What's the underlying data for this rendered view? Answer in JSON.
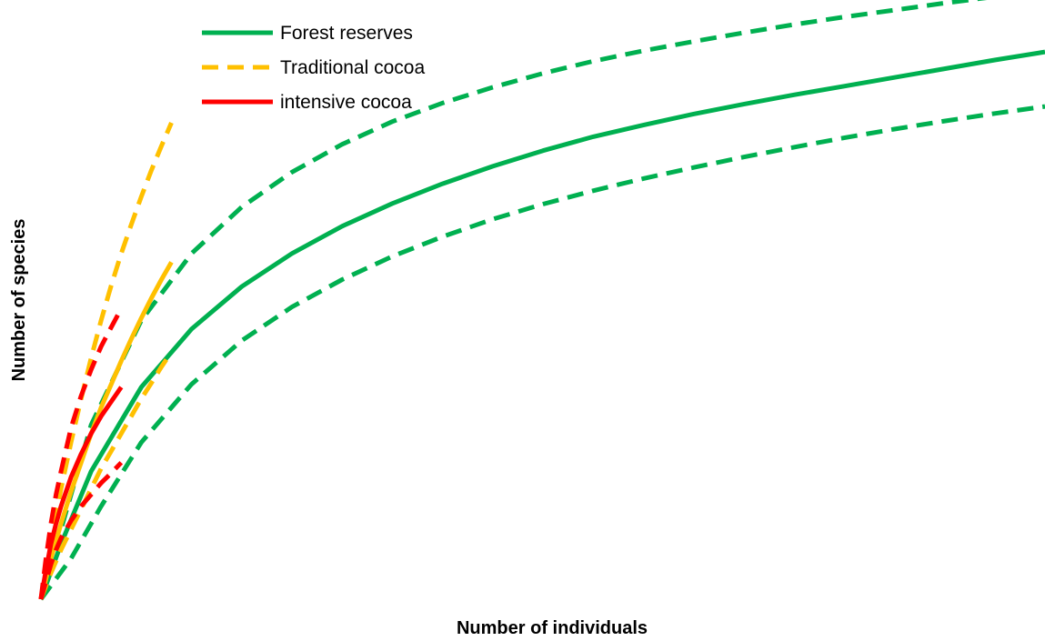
{
  "chart_data": {
    "type": "line",
    "title": "",
    "xlabel": "Number of individuals",
    "ylabel": "Number of species",
    "xlim": [
      0,
      1000
    ],
    "ylim": [
      0,
      100
    ],
    "grid": false,
    "axes_visible": false,
    "legend_position": "top-left",
    "legend": [
      {
        "label": "Forest reserves",
        "color": "#00b050",
        "style": "solid"
      },
      {
        "label": "Traditional cocoa",
        "color": "#ffc000",
        "style": "dashed"
      },
      {
        "label": "intensive cocoa",
        "color": "#ff0000",
        "style": "solid"
      }
    ],
    "series": [
      {
        "name": "Forest reserves",
        "role": "estimate",
        "color": "#00b050",
        "dash": false,
        "x": [
          0,
          20,
          50,
          100,
          150,
          200,
          250,
          300,
          350,
          400,
          450,
          500,
          550,
          600,
          650,
          700,
          750,
          800,
          850,
          900,
          950,
          1000
        ],
        "y": [
          0,
          9.5,
          22,
          36.5,
          46.5,
          53.8,
          59.5,
          64.2,
          68.1,
          71.5,
          74.5,
          77.2,
          79.6,
          81.6,
          83.5,
          85.2,
          86.8,
          88.3,
          89.8,
          91.3,
          92.8,
          94.2
        ]
      },
      {
        "name": "Forest reserves",
        "role": "upper_ci",
        "color": "#00b050",
        "dash": true,
        "x": [
          0,
          50,
          100,
          150,
          200,
          250,
          300,
          350,
          400,
          450,
          500,
          550,
          600,
          650,
          700,
          750,
          800,
          850,
          900,
          950,
          1000
        ],
        "y": [
          0,
          30,
          48,
          59.5,
          67.5,
          73.5,
          78.3,
          82.2,
          85.4,
          88.1,
          90.5,
          92.6,
          94.4,
          96,
          97.5,
          98.9,
          100.2,
          101.4,
          102.6,
          103.7,
          104.8
        ]
      },
      {
        "name": "Forest reserves",
        "role": "lower_ci",
        "color": "#00b050",
        "dash": true,
        "x": [
          0,
          30,
          60,
          100,
          150,
          200,
          250,
          300,
          350,
          400,
          450,
          500,
          550,
          600,
          650,
          700,
          750,
          800,
          850,
          900,
          950,
          1000
        ],
        "y": [
          0,
          7,
          16,
          27,
          37,
          44.5,
          50.3,
          55,
          59,
          62.4,
          65.4,
          68,
          70.3,
          72.4,
          74.3,
          76.1,
          77.8,
          79.4,
          80.9,
          82.3,
          83.6,
          84.8
        ]
      },
      {
        "name": "Traditional cocoa",
        "role": "estimate",
        "color": "#ffc000",
        "dash": false,
        "x": [
          0,
          10,
          20,
          30,
          40,
          50,
          60,
          70,
          80,
          90,
          100,
          110,
          120,
          130
        ],
        "y": [
          0,
          7,
          13,
          18.5,
          23.5,
          28.5,
          33,
          37,
          41,
          44.8,
          48.4,
          51.8,
          55,
          58
        ]
      },
      {
        "name": "Traditional cocoa",
        "role": "upper_ci",
        "color": "#ffc000",
        "dash": true,
        "x": [
          0,
          10,
          20,
          30,
          40,
          50,
          60,
          70,
          80,
          90,
          100,
          110,
          120,
          130
        ],
        "y": [
          0,
          10,
          19,
          27,
          34.5,
          41.5,
          48,
          54,
          59.5,
          64.5,
          69.3,
          73.8,
          78,
          82
        ]
      },
      {
        "name": "Traditional cocoa",
        "role": "lower_ci",
        "color": "#ffc000",
        "dash": true,
        "x": [
          0,
          10,
          20,
          30,
          40,
          50,
          60,
          70,
          80,
          90,
          100,
          110,
          120,
          130
        ],
        "y": [
          0,
          4.5,
          8.5,
          12,
          15.5,
          19,
          22.5,
          25.5,
          28.5,
          31.5,
          34.5,
          37.2,
          40,
          42.5
        ]
      },
      {
        "name": "intensive cocoa",
        "role": "estimate",
        "color": "#ff0000",
        "dash": false,
        "x": [
          0,
          5,
          10,
          15,
          20,
          30,
          40,
          50,
          60,
          70,
          80
        ],
        "y": [
          0,
          5,
          9.5,
          13,
          16,
          21,
          25,
          28.5,
          31.5,
          34,
          36.5
        ]
      },
      {
        "name": "intensive cocoa",
        "role": "upper_ci",
        "color": "#ff0000",
        "dash": true,
        "x": [
          0,
          5,
          10,
          15,
          20,
          30,
          40,
          50,
          60,
          70,
          80
        ],
        "y": [
          0,
          7,
          13,
          18,
          22,
          29.5,
          35,
          39.5,
          43.5,
          46.8,
          50
        ]
      },
      {
        "name": "intensive cocoa",
        "role": "lower_ci",
        "color": "#ff0000",
        "dash": true,
        "x": [
          0,
          5,
          10,
          15,
          20,
          30,
          40,
          50,
          60,
          70,
          80
        ],
        "y": [
          0,
          3,
          6,
          8.5,
          10.5,
          13.5,
          16,
          18,
          20,
          21.7,
          23.5
        ]
      }
    ]
  }
}
